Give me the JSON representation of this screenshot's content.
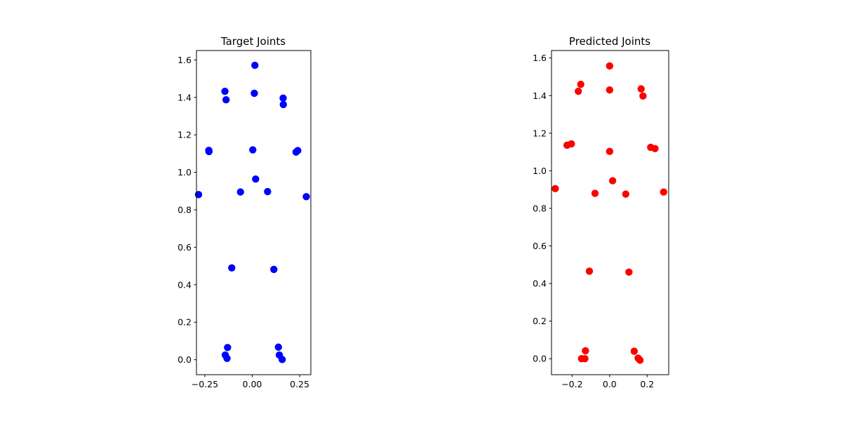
{
  "chart_data": [
    {
      "type": "scatter",
      "title": "Target Joints",
      "xlabel": "",
      "ylabel": "",
      "xlim": [
        -0.294,
        0.309
      ],
      "ylim": [
        -0.08,
        1.65
      ],
      "xticks": [
        -0.25,
        0.0,
        0.25
      ],
      "xtick_labels": [
        "−0.25",
        "0.00",
        "0.25"
      ],
      "yticks": [
        0.0,
        0.2,
        0.4,
        0.6,
        0.8,
        1.0,
        1.2,
        1.4,
        1.6
      ],
      "ytick_labels": [
        "0.0",
        "0.2",
        "0.4",
        "0.6",
        "0.8",
        "1.0",
        "1.2",
        "1.4",
        "1.6"
      ],
      "grid": false,
      "color": "#0000ff",
      "points": [
        {
          "x": 0.014,
          "y": 1.571
        },
        {
          "x": -0.144,
          "y": 1.432
        },
        {
          "x": 0.011,
          "y": 1.422
        },
        {
          "x": -0.138,
          "y": 1.387
        },
        {
          "x": 0.163,
          "y": 1.396
        },
        {
          "x": 0.164,
          "y": 1.362
        },
        {
          "x": -0.229,
          "y": 1.117
        },
        {
          "x": -0.228,
          "y": 1.111
        },
        {
          "x": 0.003,
          "y": 1.12
        },
        {
          "x": 0.24,
          "y": 1.116
        },
        {
          "x": 0.231,
          "y": 1.108
        },
        {
          "x": 0.018,
          "y": 0.964
        },
        {
          "x": -0.283,
          "y": 0.881
        },
        {
          "x": -0.062,
          "y": 0.895
        },
        {
          "x": 0.081,
          "y": 0.897
        },
        {
          "x": 0.285,
          "y": 0.87
        },
        {
          "x": -0.108,
          "y": 0.49
        },
        {
          "x": 0.114,
          "y": 0.482
        },
        {
          "x": -0.13,
          "y": 0.065
        },
        {
          "x": -0.142,
          "y": 0.025
        },
        {
          "x": -0.133,
          "y": 0.007
        },
        {
          "x": 0.138,
          "y": 0.067
        },
        {
          "x": 0.143,
          "y": 0.025
        },
        {
          "x": 0.158,
          "y": 0.001
        }
      ]
    },
    {
      "type": "scatter",
      "title": "Predicted Joints",
      "xlabel": "",
      "ylabel": "",
      "xlim": [
        -0.31,
        0.315
      ],
      "ylim": [
        -0.085,
        1.64
      ],
      "xticks": [
        -0.2,
        0.0,
        0.2
      ],
      "xtick_labels": [
        "−0.2",
        "0.0",
        "0.2"
      ],
      "yticks": [
        0.0,
        0.2,
        0.4,
        0.6,
        0.8,
        1.0,
        1.2,
        1.4,
        1.6
      ],
      "ytick_labels": [
        "0.0",
        "0.2",
        "0.4",
        "0.6",
        "0.8",
        "1.0",
        "1.2",
        "1.4",
        "1.6"
      ],
      "grid": false,
      "color": "#ff0000",
      "points": [
        {
          "x": 0.0,
          "y": 1.558
        },
        {
          "x": -0.154,
          "y": 1.46
        },
        {
          "x": -0.167,
          "y": 1.423
        },
        {
          "x": 0.0,
          "y": 1.43
        },
        {
          "x": 0.168,
          "y": 1.436
        },
        {
          "x": 0.178,
          "y": 1.398
        },
        {
          "x": -0.227,
          "y": 1.136
        },
        {
          "x": -0.204,
          "y": 1.143
        },
        {
          "x": 0.0,
          "y": 1.103
        },
        {
          "x": 0.219,
          "y": 1.125
        },
        {
          "x": 0.242,
          "y": 1.118
        },
        {
          "x": 0.016,
          "y": 0.947
        },
        {
          "x": -0.29,
          "y": 0.905
        },
        {
          "x": -0.078,
          "y": 0.88
        },
        {
          "x": 0.086,
          "y": 0.876
        },
        {
          "x": 0.288,
          "y": 0.887
        },
        {
          "x": -0.108,
          "y": 0.466
        },
        {
          "x": 0.103,
          "y": 0.461
        },
        {
          "x": -0.129,
          "y": 0.042
        },
        {
          "x": -0.15,
          "y": 0.0
        },
        {
          "x": -0.132,
          "y": 0.0
        },
        {
          "x": 0.131,
          "y": 0.04
        },
        {
          "x": 0.152,
          "y": 0.003
        },
        {
          "x": 0.162,
          "y": -0.008
        }
      ]
    }
  ]
}
